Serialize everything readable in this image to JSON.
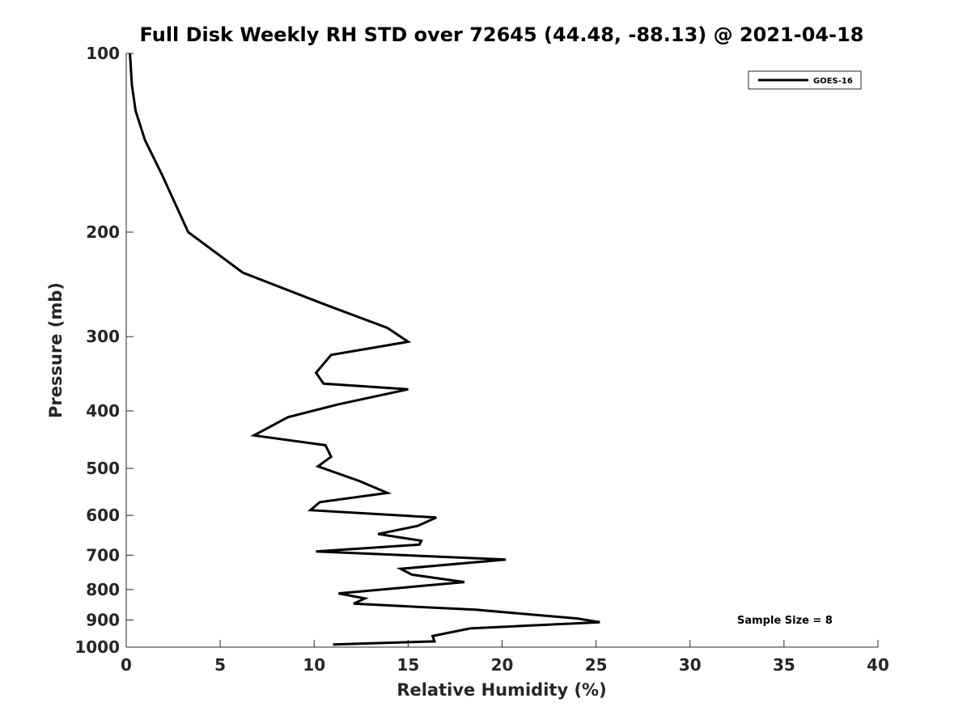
{
  "chart_data": {
    "type": "line",
    "title": "Full Disk Weekly RH STD over 72645 (44.48, -88.13) @ 2021-04-18",
    "xlabel": "Relative Humidity (%)",
    "ylabel": "Pressure (mb)",
    "xlim": [
      0,
      40
    ],
    "ylim": [
      100,
      1000
    ],
    "y_scale": "log",
    "y_reversed": true,
    "grid": false,
    "legend_position": "top-right",
    "x_ticks": [
      0,
      5,
      10,
      15,
      20,
      25,
      30,
      35,
      40
    ],
    "y_ticks": [
      100,
      200,
      300,
      400,
      500,
      600,
      700,
      800,
      900,
      1000
    ],
    "annotation": "Sample Size = 8",
    "series": [
      {
        "name": "GOES-16",
        "color": "#000000",
        "x": [
          0.2,
          0.3,
          0.5,
          1.0,
          1.9,
          3.3,
          6.2,
          10.6,
          13.9,
          15.0,
          10.9,
          10.1,
          10.5,
          15.0,
          11.3,
          8.6,
          6.8,
          10.6,
          10.9,
          10.2,
          12.4,
          13.9,
          10.3,
          9.8,
          16.5,
          15.5,
          13.4,
          15.7,
          15.6,
          10.1,
          20.2,
          14.6,
          15.2,
          18.0,
          11.3,
          12.7,
          12.1,
          18.6,
          24.0,
          25.2,
          18.3,
          16.3,
          16.4,
          11.0
        ],
        "y": [
          100,
          113,
          125,
          140,
          160,
          200,
          234,
          265,
          290,
          306,
          322,
          345,
          360,
          368,
          390,
          410,
          440,
          457,
          478,
          496,
          525,
          550,
          570,
          588,
          605,
          625,
          645,
          662,
          672,
          690,
          712,
          738,
          755,
          777,
          812,
          828,
          845,
          865,
          895,
          908,
          930,
          958,
          978,
          990
        ]
      }
    ]
  }
}
